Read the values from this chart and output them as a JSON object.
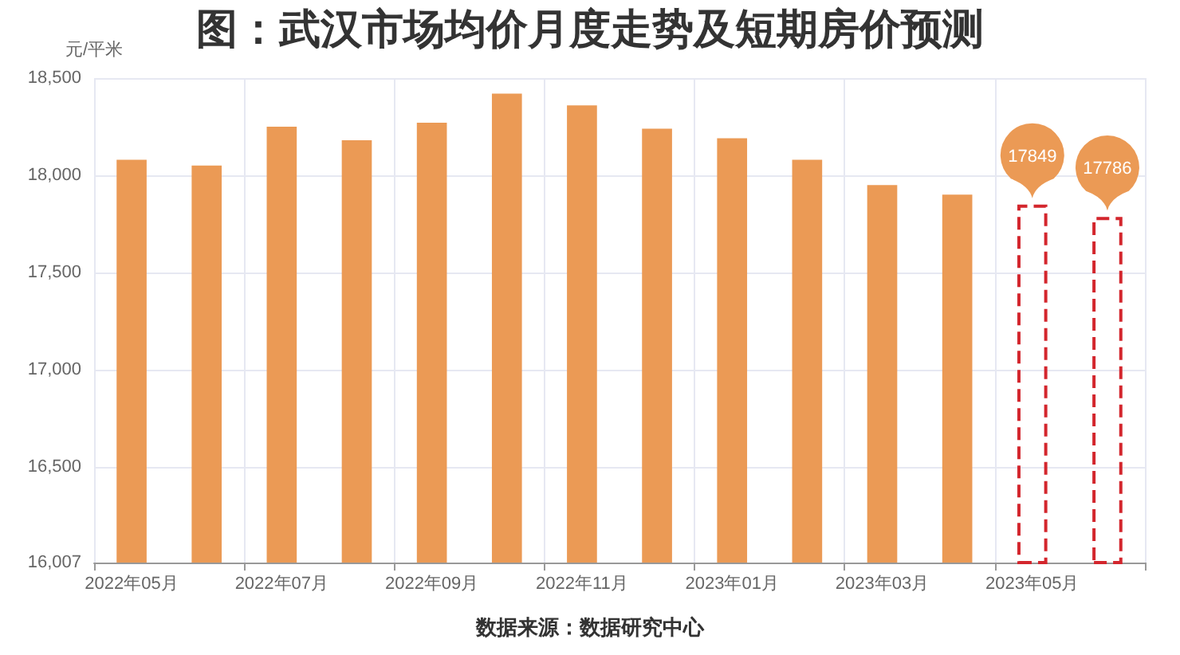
{
  "chart_data": {
    "type": "bar",
    "title": "图：武汉市场均价月度走势及短期房价预测",
    "ylabel": "元/平米",
    "annotations": [
      "数据来源：数据研究中心"
    ],
    "categories": [
      "2022年05月",
      null,
      "2022年07月",
      null,
      "2022年09月",
      null,
      "2022年11月",
      null,
      "2023年01月",
      null,
      "2023年03月",
      null,
      "2023年05月",
      null
    ],
    "series": [
      {
        "color": "#eb9a55",
        "values": [
          18080,
          18050,
          18250,
          18180,
          18270,
          18420,
          18360,
          18240,
          18190,
          18080,
          17950,
          17900,
          null,
          null
        ]
      },
      {
        "color": "#d3262d",
        "line_style": "dashed",
        "values": [
          null,
          null,
          null,
          null,
          null,
          null,
          null,
          null,
          null,
          null,
          null,
          null,
          17849,
          17786
        ],
        "value_labels": [
          null,
          null,
          null,
          null,
          null,
          null,
          null,
          null,
          null,
          null,
          null,
          null,
          "17849",
          "17786"
        ]
      }
    ],
    "ylim": [
      16007,
      18500
    ],
    "yticks": [
      {
        "value": 16007,
        "label": "16,007"
      },
      {
        "value": 16500,
        "label": "16,500"
      },
      {
        "value": 17000,
        "label": "17,000"
      },
      {
        "value": 17500,
        "label": "17,500"
      },
      {
        "value": 18000,
        "label": "18,000"
      },
      {
        "value": 18500,
        "label": "18,500"
      }
    ],
    "grid": true
  }
}
